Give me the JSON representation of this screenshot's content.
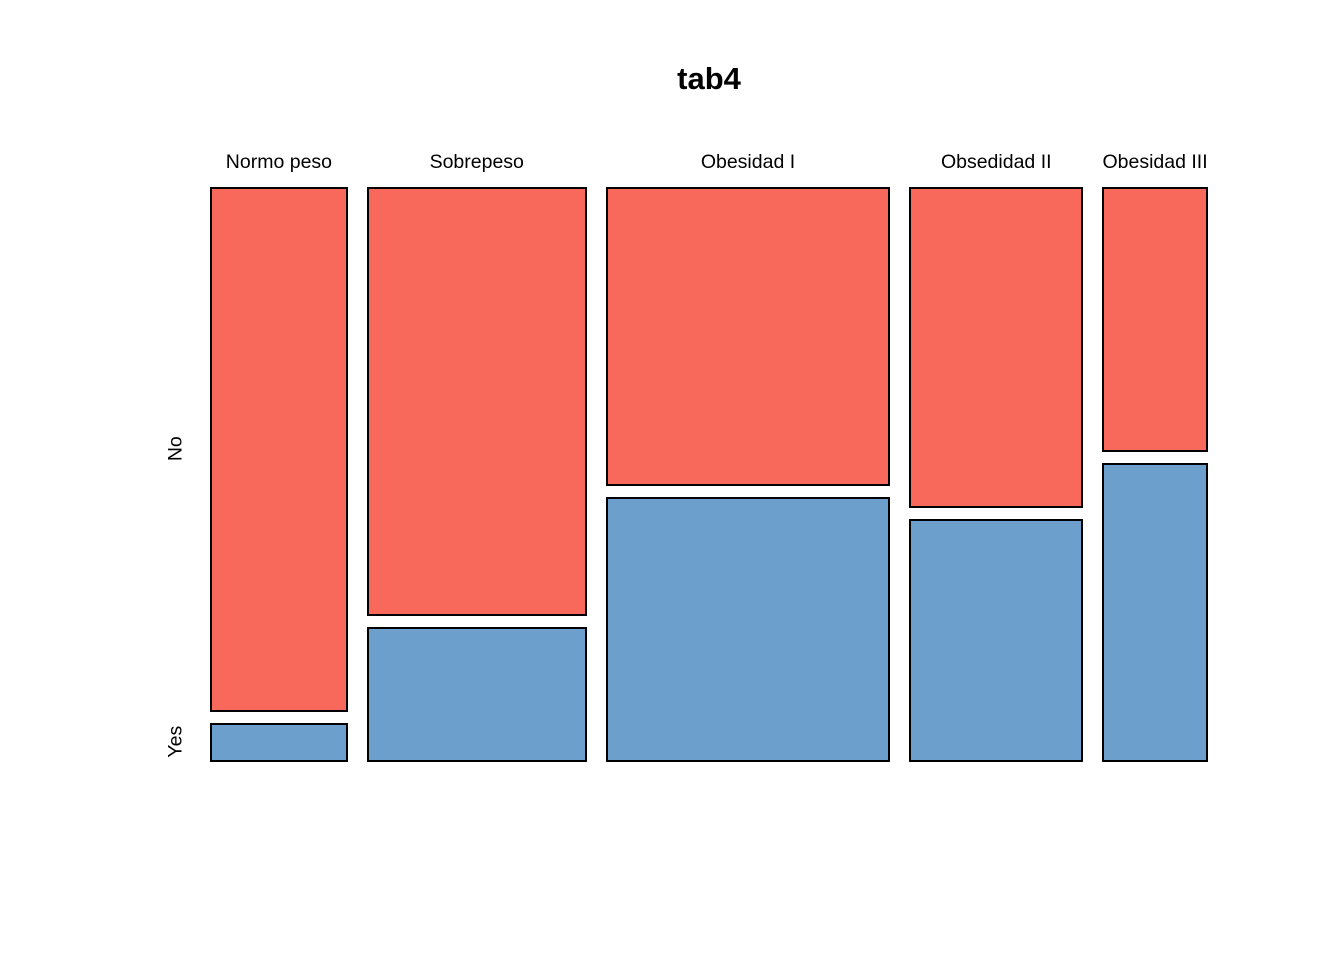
{
  "chart_data": {
    "type": "mosaic",
    "title": "tab4",
    "columns": [
      "Normo peso",
      "Sobrepeso",
      "Obesidad I",
      "Obsedidad II",
      "Obesidad III"
    ],
    "rows": [
      "No",
      "Yes"
    ],
    "column_share": [
      0.1495,
      0.2384,
      0.3088,
      0.1885,
      0.1148
    ],
    "row_share_no": [
      0.93,
      0.76,
      0.531,
      0.57,
      0.47
    ],
    "colors": {
      "no": "#F9695B",
      "yes": "#6C9FCB",
      "border": "#000000",
      "background": "#FFFFFF",
      "text": "#000000"
    },
    "legend": "none",
    "axes": "no tick marks, category labels above columns, row labels rotated on left"
  }
}
